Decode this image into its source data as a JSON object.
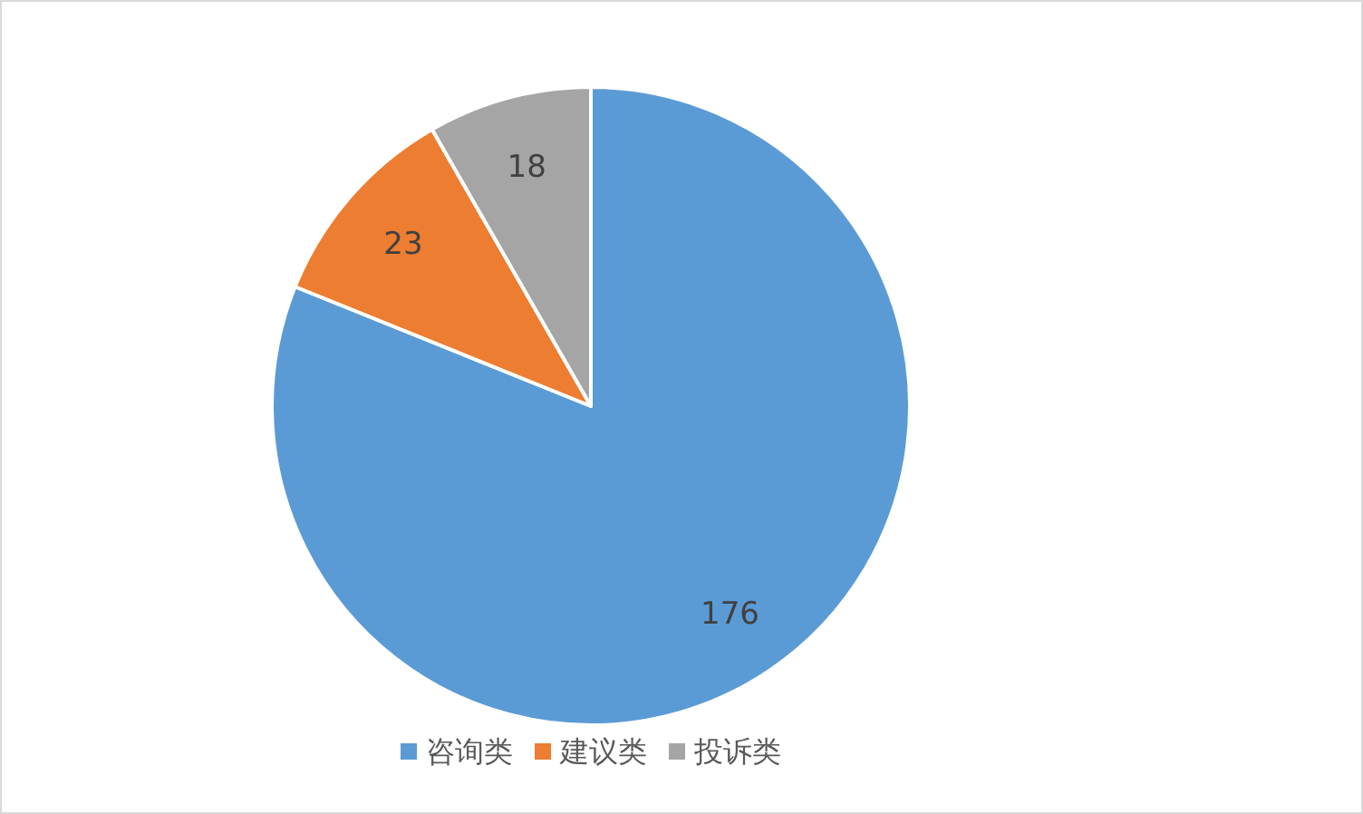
{
  "chart_data": {
    "type": "pie",
    "categories": [
      "咨询类",
      "建议类",
      "投诉类"
    ],
    "values": [
      176,
      23,
      18
    ],
    "colors": [
      "#5b9bd5",
      "#ed7d31",
      "#a5a5a5"
    ],
    "data_labels": true,
    "legend": "bottom"
  }
}
